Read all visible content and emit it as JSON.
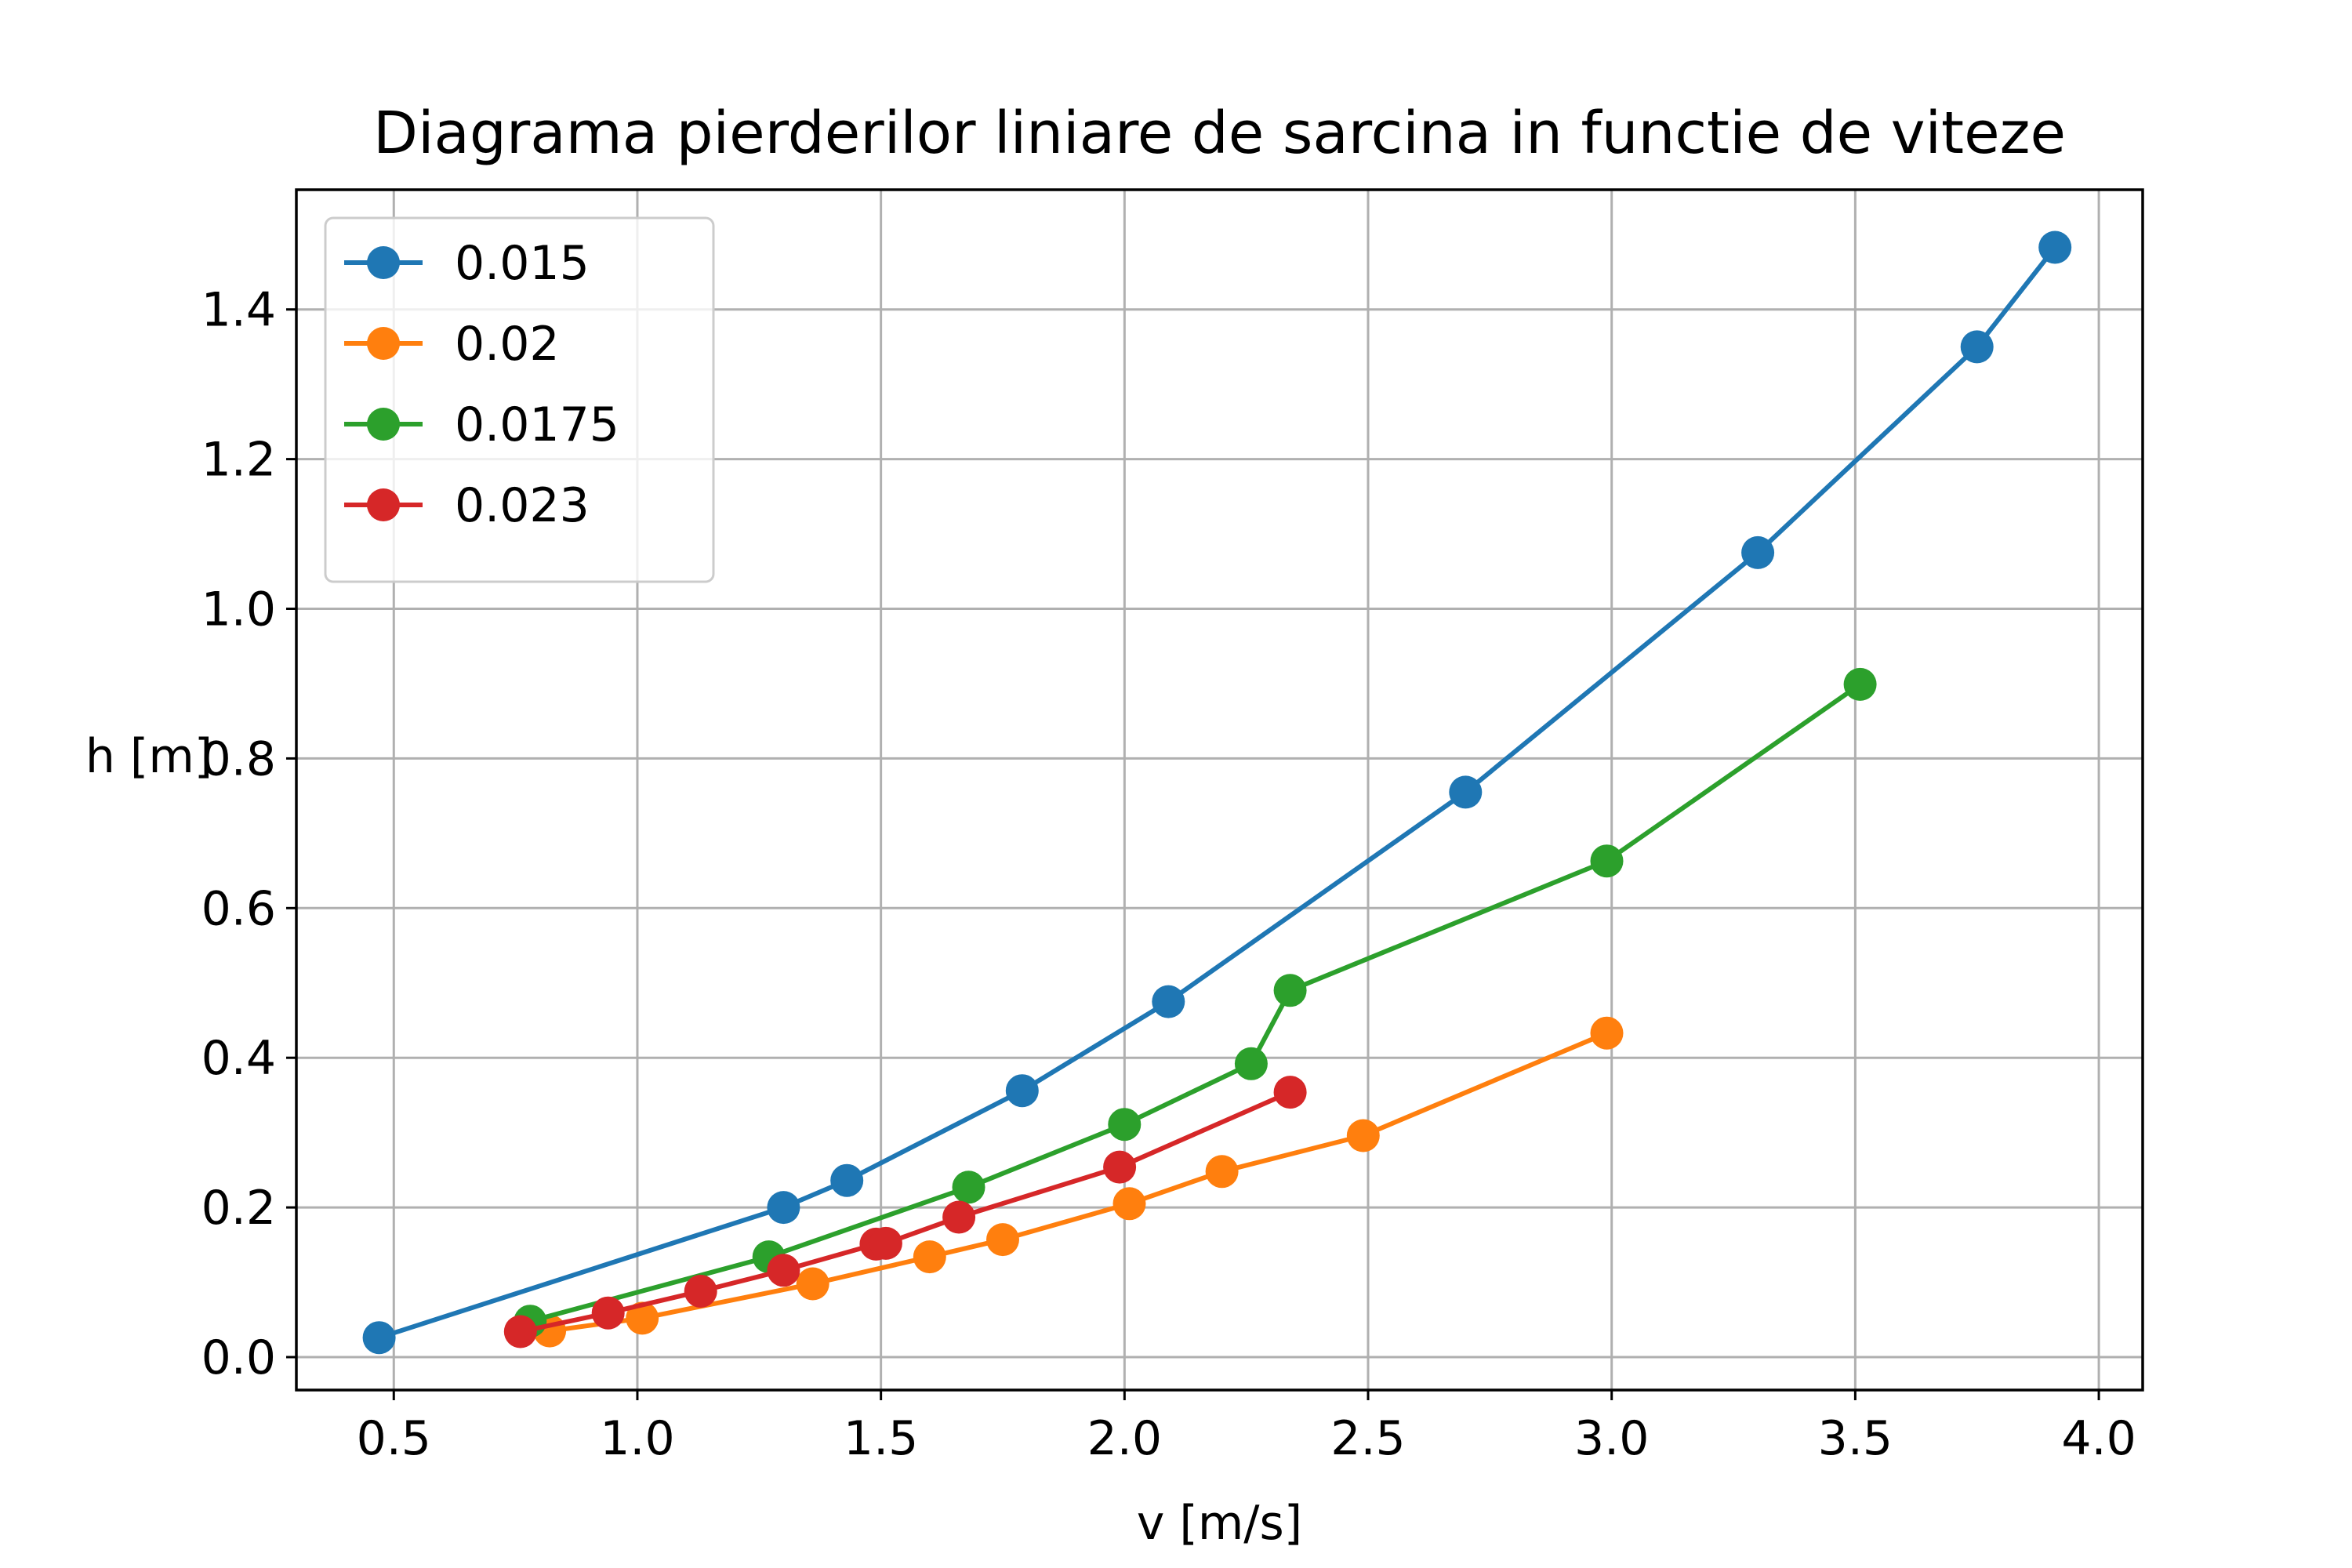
{
  "chart_data": {
    "type": "line",
    "title": "Diagrama pierderilor liniare de sarcina in functie de viteze",
    "xlabel": "v [m/s]",
    "ylabel": "h [m]",
    "xlim": [
      0.3,
      4.09
    ],
    "ylim": [
      -0.044,
      1.56
    ],
    "xticks": [
      0.5,
      1.0,
      1.5,
      2.0,
      2.5,
      3.0,
      3.5,
      4.0
    ],
    "xtick_labels": [
      "0.5",
      "1.0",
      "1.5",
      "2.0",
      "2.5",
      "3.0",
      "3.5",
      "4.0"
    ],
    "yticks": [
      0.0,
      0.2,
      0.4,
      0.6,
      0.8,
      1.0,
      1.2,
      1.4
    ],
    "ytick_labels": [
      "0.0",
      "0.2",
      "0.4",
      "0.6",
      "0.8",
      "1.0",
      "1.2",
      "1.4"
    ],
    "grid": true,
    "legend_position": "top-left",
    "series": [
      {
        "name": "0.015",
        "color": "#1f77b4",
        "x": [
          0.47,
          1.3,
          1.43,
          1.79,
          2.09,
          2.7,
          3.3,
          3.75,
          3.91
        ],
        "y": [
          0.026,
          0.2,
          0.236,
          0.356,
          0.475,
          0.755,
          1.075,
          1.35,
          1.483
        ]
      },
      {
        "name": "0.02",
        "color": "#ff7f0e",
        "x": [
          0.82,
          1.01,
          1.36,
          1.6,
          1.75,
          2.01,
          2.2,
          2.49,
          2.99
        ],
        "y": [
          0.035,
          0.052,
          0.098,
          0.134,
          0.157,
          0.205,
          0.248,
          0.296,
          0.433
        ]
      },
      {
        "name": "0.0175",
        "color": "#2ca02c",
        "x": [
          0.78,
          1.27,
          1.68,
          2.0,
          2.26,
          2.34,
          2.99,
          3.51
        ],
        "y": [
          0.048,
          0.134,
          0.227,
          0.311,
          0.392,
          0.49,
          0.663,
          0.899
        ]
      },
      {
        "name": "0.023",
        "color": "#d62728",
        "x": [
          0.76,
          0.94,
          1.13,
          1.3,
          1.49,
          1.51,
          1.66,
          1.99,
          2.34
        ],
        "y": [
          0.034,
          0.059,
          0.088,
          0.116,
          0.151,
          0.152,
          0.187,
          0.254,
          0.354
        ]
      }
    ]
  }
}
